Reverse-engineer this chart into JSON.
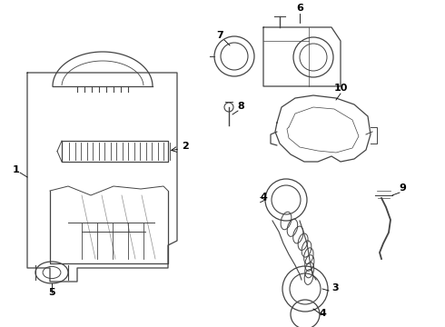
{
  "bg_color": "#ffffff",
  "line_color": "#444444",
  "text_color": "#000000",
  "lw": 0.9
}
